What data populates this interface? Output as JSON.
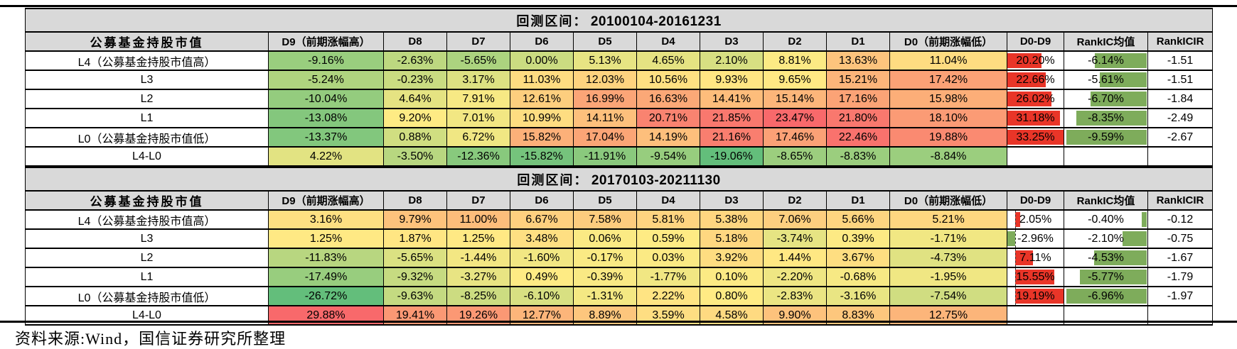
{
  "source_note": "资料来源:Wind，国信证券研究所整理",
  "colors": {
    "header_bg": "#d9d9d9",
    "border": "#000000",
    "heat_min_green": "#63be7b",
    "heat_mid_yellow": "#ffeb84",
    "heat_max_red": "#f8696b",
    "databar_red": "#e93528",
    "databar_green": "#7eac5b"
  },
  "chart_data": {
    "type": "heatmap-table",
    "columns": [
      "公募基金持股市值",
      "D9（前期涨幅高）",
      "D8",
      "D7",
      "D6",
      "D5",
      "D4",
      "D3",
      "D2",
      "D1",
      "D0（前期涨幅低）",
      "D0-D9",
      "RankIC均值",
      "RankICIR"
    ],
    "tables": [
      {
        "title_prefix": "回测区间：",
        "title_period": "20100104-20161231",
        "rows": [
          {
            "label": "L4（公募基金持股市值高）",
            "cells": [
              -9.16,
              -2.63,
              -5.65,
              0.0,
              5.13,
              4.65,
              2.1,
              8.81,
              13.63,
              11.04
            ],
            "d0_d9": 20.2,
            "rankic_mean": -6.14,
            "rankic_ir": -1.51
          },
          {
            "label": "L3",
            "cells": [
              -5.24,
              -0.23,
              3.17,
              11.03,
              12.03,
              10.56,
              9.93,
              9.65,
              15.21,
              17.42
            ],
            "d0_d9": 22.66,
            "rankic_mean": -5.61,
            "rankic_ir": -1.51
          },
          {
            "label": "L2",
            "cells": [
              -10.04,
              4.64,
              7.91,
              12.61,
              16.99,
              16.63,
              14.41,
              15.14,
              17.16,
              15.98
            ],
            "d0_d9": 26.02,
            "rankic_mean": -6.7,
            "rankic_ir": -1.84
          },
          {
            "label": "L1",
            "cells": [
              -13.08,
              9.2,
              7.01,
              10.99,
              14.11,
              20.71,
              21.85,
              23.47,
              21.8,
              18.1
            ],
            "d0_d9": 31.18,
            "rankic_mean": -8.35,
            "rankic_ir": -2.49
          },
          {
            "label": "L0（公募基金持股市值低）",
            "cells": [
              -13.37,
              0.88,
              6.72,
              15.82,
              17.04,
              14.19,
              21.16,
              17.46,
              22.46,
              19.88
            ],
            "d0_d9": 33.25,
            "rankic_mean": -9.59,
            "rankic_ir": -2.67
          },
          {
            "label": "L4-L0",
            "cells": [
              4.22,
              -3.5,
              -12.36,
              -15.82,
              -11.91,
              -9.54,
              -19.06,
              -8.65,
              -8.83,
              -8.84
            ],
            "d0_d9": null,
            "rankic_mean": null,
            "rankic_ir": null
          }
        ]
      },
      {
        "title_prefix": "回测区间：",
        "title_period": "20170103-20211130",
        "rows": [
          {
            "label": "L4（公募基金持股市值高）",
            "cells": [
              3.16,
              9.79,
              11.0,
              6.67,
              7.58,
              5.81,
              5.38,
              7.06,
              5.66,
              5.21
            ],
            "d0_d9": 2.05,
            "rankic_mean": -0.4,
            "rankic_ir": -0.12
          },
          {
            "label": "L3",
            "cells": [
              1.25,
              1.87,
              1.25,
              3.48,
              0.06,
              0.59,
              5.18,
              -3.74,
              0.39,
              -1.71
            ],
            "d0_d9": -2.96,
            "rankic_mean": -2.1,
            "rankic_ir": -0.75
          },
          {
            "label": "L2",
            "cells": [
              -11.83,
              -5.65,
              -1.44,
              -1.6,
              -0.17,
              0.03,
              3.92,
              1.44,
              3.67,
              -4.73
            ],
            "d0_d9": 7.11,
            "rankic_mean": -4.53,
            "rankic_ir": -1.67
          },
          {
            "label": "L1",
            "cells": [
              -17.49,
              -9.32,
              -3.27,
              0.49,
              -0.39,
              -1.77,
              0.1,
              -2.2,
              -0.68,
              -1.95
            ],
            "d0_d9": 15.55,
            "rankic_mean": -5.77,
            "rankic_ir": -1.79
          },
          {
            "label": "L0（公募基金持股市值低）",
            "cells": [
              -26.72,
              -9.63,
              -8.25,
              -6.1,
              -1.31,
              2.22,
              0.8,
              -2.83,
              -3.16,
              -7.54
            ],
            "d0_d9": 19.19,
            "rankic_mean": -6.96,
            "rankic_ir": -1.97
          },
          {
            "label": "L4-L0",
            "cells": [
              29.88,
              19.41,
              19.26,
              12.77,
              8.89,
              3.59,
              4.58,
              9.9,
              8.83,
              12.75
            ],
            "d0_d9": null,
            "rankic_mean": null,
            "rankic_ir": null
          }
        ]
      }
    ]
  }
}
